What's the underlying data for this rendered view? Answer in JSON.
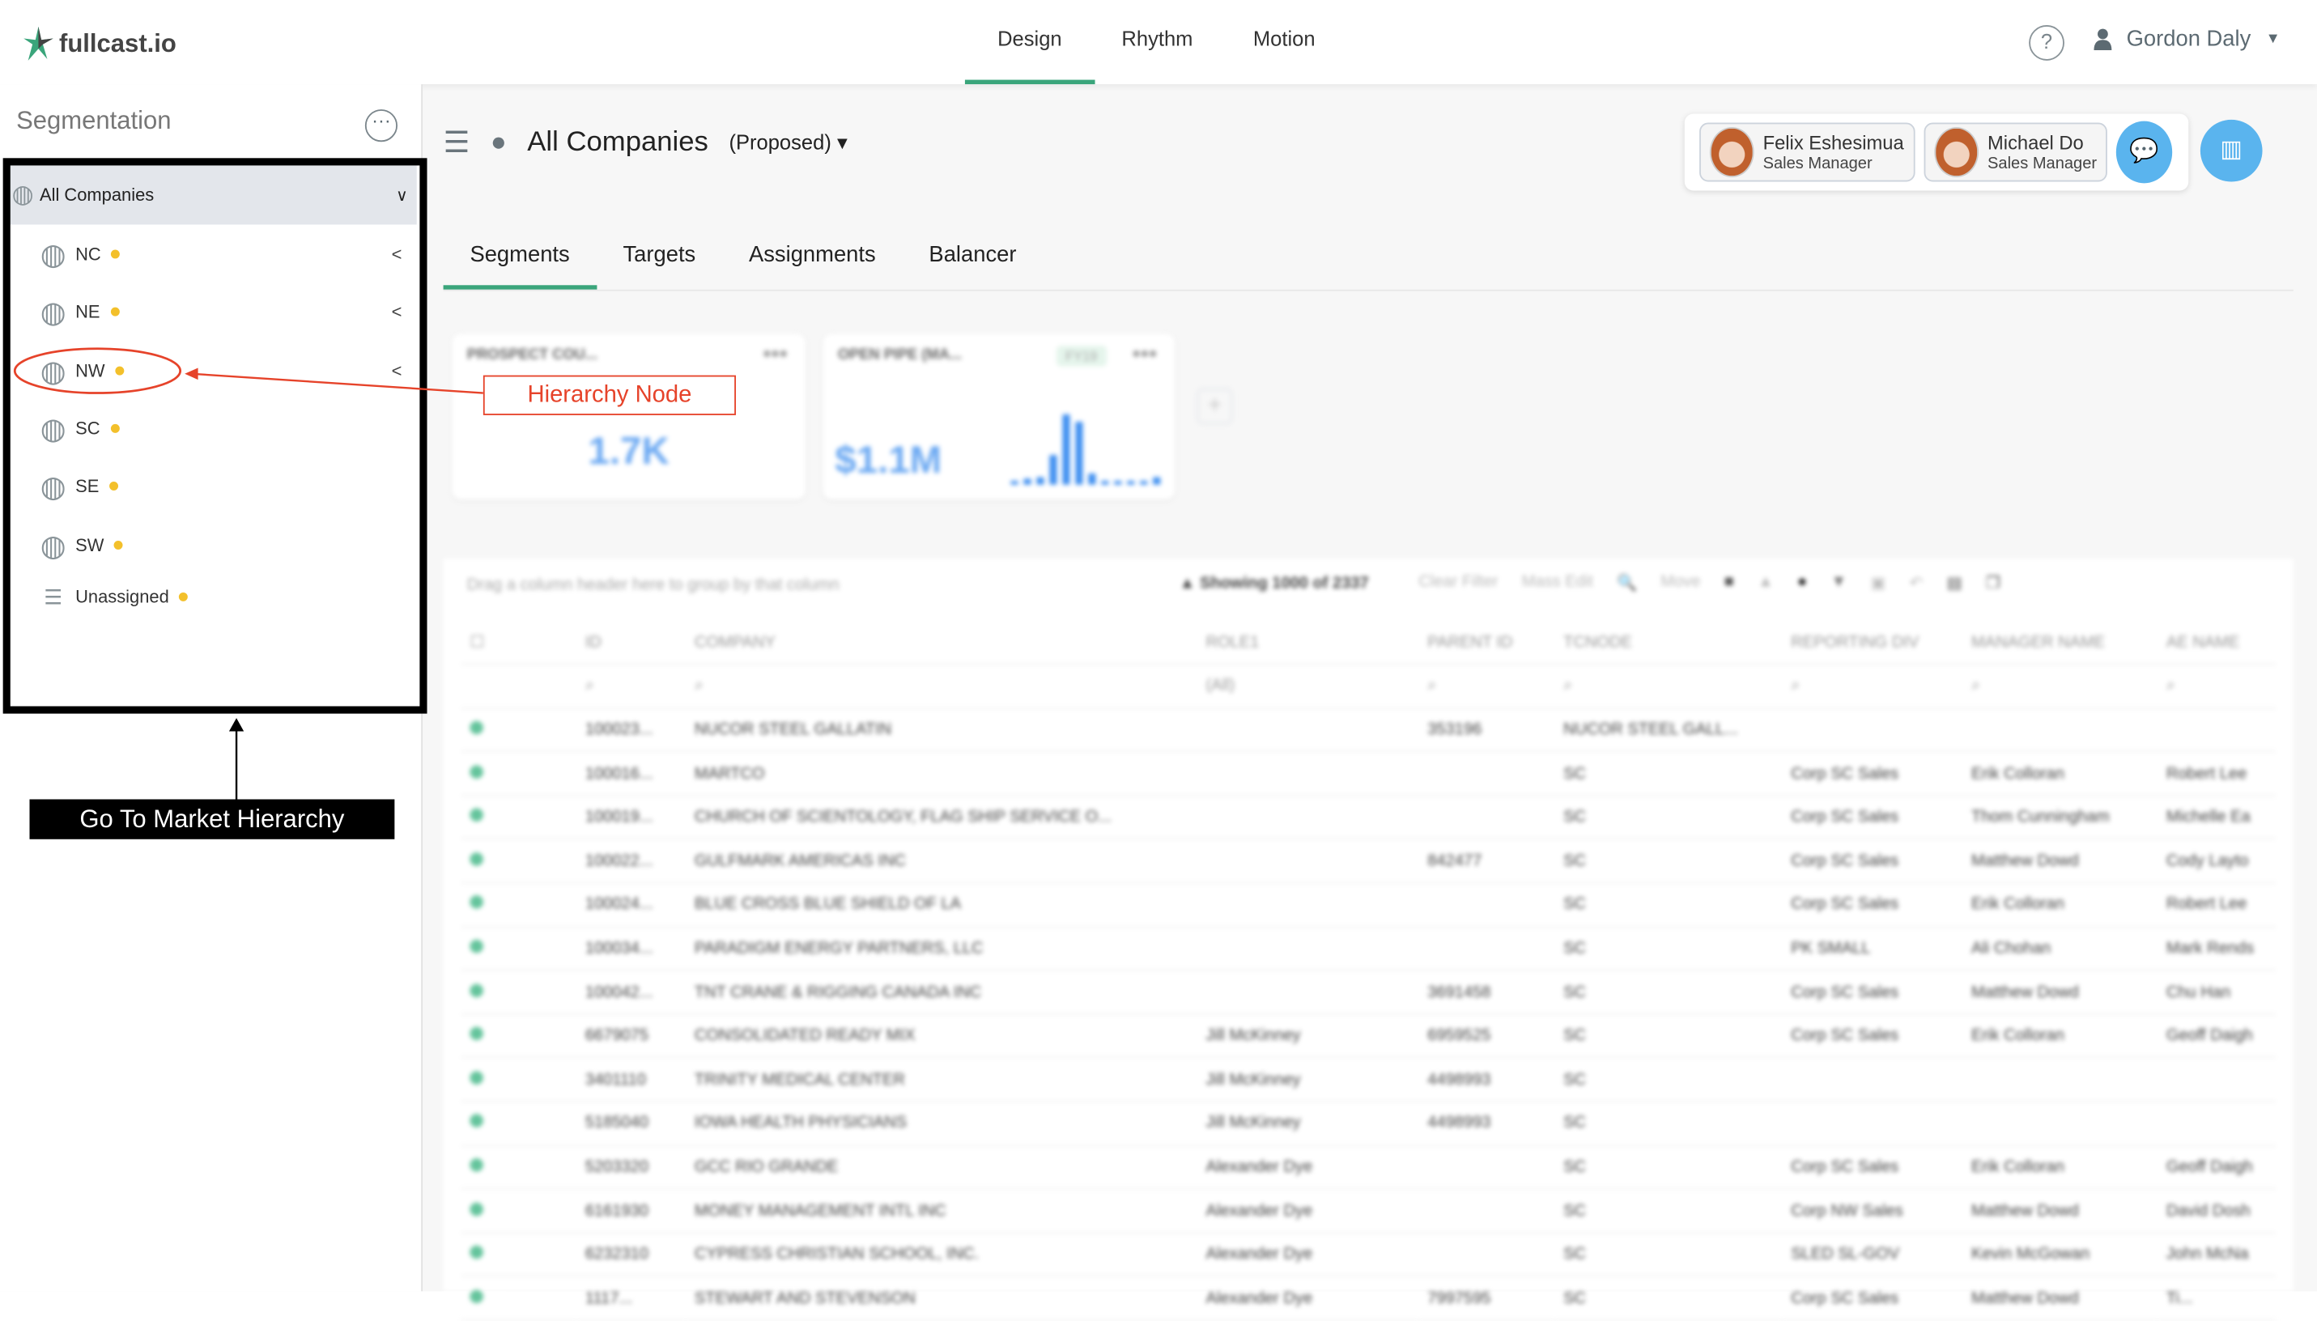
{
  "app": {
    "logo_text": "fullcast.io"
  },
  "nav": {
    "tabs": [
      {
        "label": "Design",
        "active": true
      },
      {
        "label": "Rhythm"
      },
      {
        "label": "Motion"
      }
    ],
    "help": "?",
    "user_name": "Gordon Daly"
  },
  "sidebar": {
    "title": "Segmentation",
    "root": "All Companies",
    "items": [
      {
        "label": "NC",
        "expandable": true
      },
      {
        "label": "NE",
        "expandable": true
      },
      {
        "label": "NW",
        "expandable": true
      },
      {
        "label": "SC"
      },
      {
        "label": "SE"
      },
      {
        "label": "SW"
      },
      {
        "label": "Unassigned"
      }
    ]
  },
  "main": {
    "title": "All Companies",
    "scenario": "(Proposed)",
    "people": [
      {
        "name": "Felix Eshesimua",
        "role": "Sales Manager"
      },
      {
        "name": "Michael Do",
        "role": "Sales Manager"
      }
    ],
    "tabs": [
      "Segments",
      "Targets",
      "Assignments",
      "Balancer"
    ],
    "cards": [
      {
        "title": "PROSPECT COU...",
        "value": "1.7K"
      },
      {
        "title": "OPEN PIPE (MA...",
        "value": "$1.1M",
        "badge": "FY19"
      }
    ],
    "spark": [
      0.05,
      0.08,
      0.1,
      0.4,
      0.95,
      0.85,
      0.15,
      0.05,
      0.05,
      0.05,
      0.05,
      0.1
    ]
  },
  "table": {
    "group_hint": "Drag a column header here to group by that column",
    "showing": "Showing 1000 of 2337",
    "toolbar": [
      "Clear Filter",
      "Mass Edit",
      "Move"
    ],
    "columns": [
      "ID",
      "COMPANY",
      "ROLE1",
      "PARENT ID",
      "TCNODE",
      "REPORTING DIV",
      "MANAGER NAME",
      "AE NAME"
    ],
    "role_filter": "(All)",
    "rows": [
      [
        "100023...",
        "NUCOR STEEL GALLATIN",
        "",
        "353196",
        "NUCOR STEEL GALL...",
        "",
        "",
        ""
      ],
      [
        "100016...",
        "MARTCO",
        "",
        "",
        "SC",
        "Corp SC Sales",
        "Erik Colloran",
        "Robert Lee"
      ],
      [
        "100019...",
        "CHURCH OF SCIENTOLOGY, FLAG SHIP SERVICE O...",
        "",
        "",
        "SC",
        "Corp SC Sales",
        "Thom Cunningham",
        "Michelle Ea"
      ],
      [
        "100022...",
        "GULFMARK AMERICAS INC",
        "",
        "842477",
        "SC",
        "Corp SC Sales",
        "Matthew Dowd",
        "Cody Layto"
      ],
      [
        "100024...",
        "BLUE CROSS BLUE SHIELD OF LA",
        "",
        "",
        "SC",
        "Corp SC Sales",
        "Erik Colloran",
        "Robert Lee"
      ],
      [
        "100034...",
        "PARADIGM ENERGY PARTNERS, LLC",
        "",
        "",
        "SC",
        "PK SMALL",
        "Ali Chohan",
        "Mark Rends"
      ],
      [
        "100042...",
        "TNT CRANE & RIGGING CANADA INC",
        "",
        "3691458",
        "SC",
        "Corp SC Sales",
        "Matthew Dowd",
        "Chu Han"
      ],
      [
        "6679075",
        "CONSOLIDATED READY MIX",
        "Jill McKinney",
        "6959525",
        "SC",
        "Corp SC Sales",
        "Erik Colloran",
        "Geoff Daigh"
      ],
      [
        "3401110",
        "TRINITY MEDICAL CENTER",
        "Jill McKinney",
        "4498993",
        "SC",
        "",
        "",
        ""
      ],
      [
        "5185040",
        "IOWA HEALTH PHYSICIANS",
        "Jill McKinney",
        "4498993",
        "SC",
        "",
        "",
        ""
      ],
      [
        "5203320",
        "GCC RIO GRANDE",
        "Alexander Dye",
        "",
        "SC",
        "Corp SC Sales",
        "Erik Colloran",
        "Geoff Daigh"
      ],
      [
        "6161930",
        "MONEY MANAGEMENT INTL INC",
        "Alexander Dye",
        "",
        "SC",
        "Corp NW Sales",
        "Matthew Dowd",
        "David Dosh"
      ],
      [
        "6232310",
        "CYPRESS CHRISTIAN SCHOOL, INC.",
        "Alexander Dye",
        "",
        "SC",
        "SLED SL-GOV",
        "Kevin McGowan",
        "John McNa"
      ],
      [
        "1117...",
        "STEWART AND STEVENSON",
        "Alexander Dye",
        "7997595",
        "SC",
        "Corp SC Sales",
        "Matthew Dowd",
        "Ti..."
      ]
    ]
  },
  "annotations": {
    "node_label": "Hierarchy Node",
    "hierarchy_label": "Go To Market Hierarchy"
  },
  "colors": {
    "accent_green": "#3aa57b",
    "status_dot": "#f3c02b",
    "annotation_red": "#e6432a",
    "button_blue": "#5ab4ee"
  }
}
